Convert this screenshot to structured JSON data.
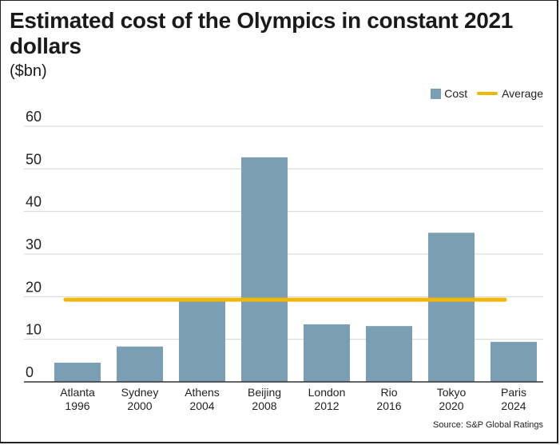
{
  "title": "Estimated cost of the Olympics in constant 2021 dollars",
  "unit_label": "($bn)",
  "source": "Source: S&P Global Ratings",
  "legend": {
    "cost_label": "Cost",
    "average_label": "Average"
  },
  "colors": {
    "bar": "#7a9fb5",
    "average": "#f2b705",
    "grid": "#d6d6d6",
    "axis": "#333333"
  },
  "chart_data": {
    "type": "bar",
    "title": "Estimated cost of the Olympics in constant 2021 dollars",
    "ylabel": "($bn)",
    "xlabel": "",
    "categories": [
      [
        "Atlanta",
        "1996"
      ],
      [
        "Sydney",
        "2000"
      ],
      [
        "Athens",
        "2004"
      ],
      [
        "Beijing",
        "2008"
      ],
      [
        "London",
        "2012"
      ],
      [
        "Rio",
        "2016"
      ],
      [
        "Tokyo",
        "2020"
      ],
      [
        "Paris",
        "2024"
      ]
    ],
    "series": [
      {
        "name": "Cost",
        "values": [
          4.5,
          8.3,
          19.2,
          52.7,
          13.5,
          13.1,
          35.0,
          9.4
        ]
      }
    ],
    "average": 19.3,
    "ylim": [
      0,
      60
    ],
    "yticks": [
      0,
      10,
      20,
      30,
      40,
      50,
      60
    ],
    "grid": true,
    "legend_position": "top-right"
  }
}
